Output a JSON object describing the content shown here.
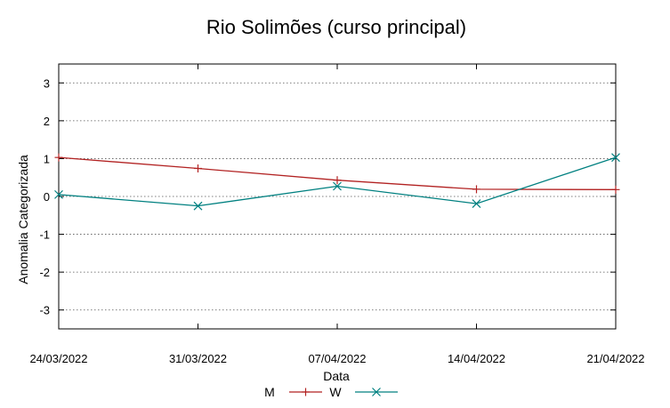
{
  "chart_data": {
    "type": "line",
    "title": "Rio Solimões (curso principal)",
    "xlabel": "Data",
    "ylabel": "Anomalia Categorizada",
    "categories": [
      "24/03/2022",
      "31/03/2022",
      "07/04/2022",
      "14/04/2022",
      "21/04/2022"
    ],
    "ylim": [
      -3.5,
      3.5
    ],
    "yticks": [
      "3",
      "2",
      "1",
      "0",
      "-1",
      "-2",
      "-3"
    ],
    "grid": "horizontal dotted",
    "legend": "bottom-center",
    "series": [
      {
        "name": "M",
        "color": "#b22222",
        "marker": "plus",
        "values": [
          1.03,
          0.74,
          0.43,
          0.19,
          0.18
        ]
      },
      {
        "name": "W",
        "color": "#008080",
        "marker": "cross",
        "values": [
          0.05,
          -0.25,
          0.27,
          -0.19,
          1.03
        ]
      }
    ]
  }
}
